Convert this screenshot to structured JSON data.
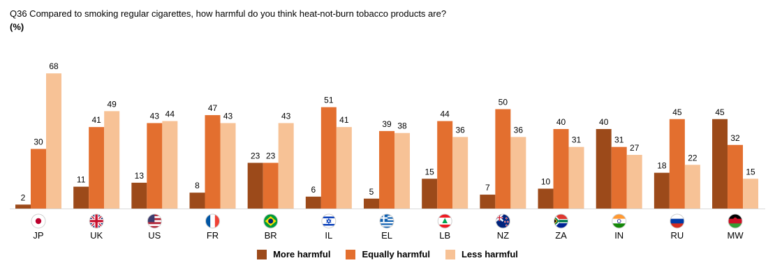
{
  "header": {
    "title": "Q36 Compared to smoking regular cigarettes, how harmful do you think heat-not-burn tobacco products are?",
    "subtitle": "(%)"
  },
  "colors": {
    "more_harmful": "#9c4a1a",
    "equally_harmful": "#e36f2f",
    "less_harmful": "#f7c296"
  },
  "chart_data": {
    "type": "bar",
    "categories": [
      "JP",
      "UK",
      "US",
      "FR",
      "BR",
      "IL",
      "EL",
      "LB",
      "NZ",
      "ZA",
      "IN",
      "RU",
      "MW"
    ],
    "category_flag_icons": [
      "flag-japan-icon",
      "flag-uk-icon",
      "flag-usa-icon",
      "flag-france-icon",
      "flag-brazil-icon",
      "flag-israel-icon",
      "flag-greece-icon",
      "flag-lebanon-icon",
      "flag-new-zealand-icon",
      "flag-south-africa-icon",
      "flag-india-icon",
      "flag-russia-icon",
      "flag-malawi-icon"
    ],
    "series": [
      {
        "name": "More harmful",
        "values": [
          2,
          11,
          13,
          8,
          23,
          6,
          5,
          15,
          7,
          10,
          40,
          18,
          45
        ]
      },
      {
        "name": "Equally harmful",
        "values": [
          30,
          41,
          43,
          47,
          23,
          51,
          39,
          44,
          50,
          40,
          31,
          45,
          32
        ]
      },
      {
        "name": "Less harmful",
        "values": [
          68,
          49,
          44,
          43,
          43,
          41,
          38,
          36,
          36,
          31,
          27,
          22,
          15
        ]
      }
    ],
    "ylim": [
      0,
      70
    ],
    "grid": false,
    "legend_position": "bottom"
  }
}
